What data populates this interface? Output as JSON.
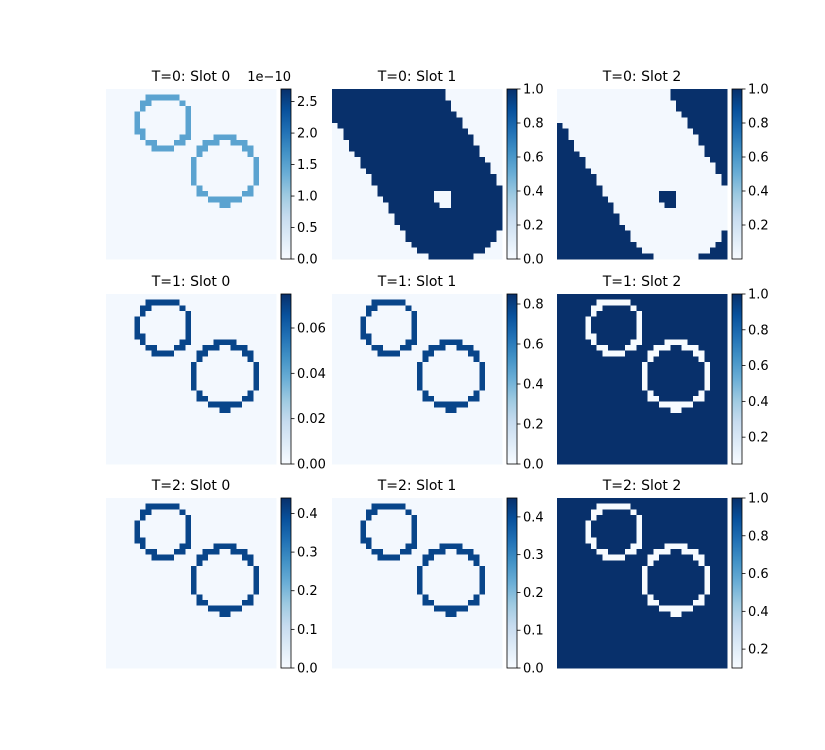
{
  "colormap": {
    "name": "Blues",
    "stops": [
      "#f7fbff",
      "#deebf7",
      "#c6dbef",
      "#9ecae1",
      "#6baed6",
      "#4292c6",
      "#2171b5",
      "#08519c",
      "#08306b"
    ]
  },
  "chart_data": [
    {
      "type": "heatmap",
      "title": "T=0: Slot 0",
      "pattern": "rings",
      "colorbar": {
        "ticks": [
          "0.0",
          "0.5",
          "1.0",
          "1.5",
          "2.0",
          "2.5"
        ],
        "tick_values": [
          0.0,
          0.5,
          1.0,
          1.5,
          2.0,
          2.5
        ],
        "vmin": 0.0,
        "vmax": 2.7,
        "offset_text": "1e−10"
      },
      "ring_level": 0.55,
      "background_level": 0.02
    },
    {
      "type": "heatmap",
      "title": "T=0: Slot 1",
      "pattern": "blob",
      "colorbar": {
        "ticks": [
          "0.0",
          "0.2",
          "0.4",
          "0.6",
          "0.8",
          "1.0"
        ],
        "tick_values": [
          0.0,
          0.2,
          0.4,
          0.6,
          0.8,
          1.0
        ],
        "vmin": 0.0,
        "vmax": 1.0
      }
    },
    {
      "type": "heatmap",
      "title": "T=0: Slot 2",
      "pattern": "blob_inverse",
      "colorbar": {
        "ticks": [
          "0.2",
          "0.4",
          "0.6",
          "0.8",
          "1.0"
        ],
        "tick_values": [
          0.2,
          0.4,
          0.6,
          0.8,
          1.0
        ],
        "vmin": 0.0,
        "vmax": 1.0
      }
    },
    {
      "type": "heatmap",
      "title": "T=1: Slot 0",
      "pattern": "rings",
      "colorbar": {
        "ticks": [
          "0.00",
          "0.02",
          "0.04",
          "0.06"
        ],
        "tick_values": [
          0.0,
          0.02,
          0.04,
          0.06
        ],
        "vmin": 0.0,
        "vmax": 0.075
      },
      "ring_level": 0.92,
      "background_level": 0.02
    },
    {
      "type": "heatmap",
      "title": "T=1: Slot 1",
      "pattern": "rings",
      "colorbar": {
        "ticks": [
          "0.0",
          "0.2",
          "0.4",
          "0.6",
          "0.8"
        ],
        "tick_values": [
          0.0,
          0.2,
          0.4,
          0.6,
          0.8
        ],
        "vmin": 0.0,
        "vmax": 0.85
      },
      "ring_level": 0.92,
      "background_level": 0.02
    },
    {
      "type": "heatmap",
      "title": "T=1: Slot 2",
      "pattern": "rings_inverse",
      "colorbar": {
        "ticks": [
          "0.2",
          "0.4",
          "0.6",
          "0.8",
          "1.0"
        ],
        "tick_values": [
          0.2,
          0.4,
          0.6,
          0.8,
          1.0
        ],
        "vmin": 0.05,
        "vmax": 1.0
      }
    },
    {
      "type": "heatmap",
      "title": "T=2: Slot 0",
      "pattern": "rings",
      "colorbar": {
        "ticks": [
          "0.0",
          "0.1",
          "0.2",
          "0.3",
          "0.4"
        ],
        "tick_values": [
          0.0,
          0.1,
          0.2,
          0.3,
          0.4
        ],
        "vmin": 0.0,
        "vmax": 0.44
      },
      "ring_level": 0.92,
      "background_level": 0.02
    },
    {
      "type": "heatmap",
      "title": "T=2: Slot 1",
      "pattern": "rings",
      "colorbar": {
        "ticks": [
          "0.0",
          "0.1",
          "0.2",
          "0.3",
          "0.4"
        ],
        "tick_values": [
          0.0,
          0.1,
          0.2,
          0.3,
          0.4
        ],
        "vmin": 0.0,
        "vmax": 0.45
      },
      "ring_level": 0.92,
      "background_level": 0.02
    },
    {
      "type": "heatmap",
      "title": "T=2: Slot 2",
      "pattern": "rings_inverse",
      "colorbar": {
        "ticks": [
          "0.2",
          "0.4",
          "0.6",
          "0.8",
          "1.0"
        ],
        "tick_values": [
          0.2,
          0.4,
          0.6,
          0.8,
          1.0
        ],
        "vmin": 0.1,
        "vmax": 1.0
      }
    }
  ]
}
